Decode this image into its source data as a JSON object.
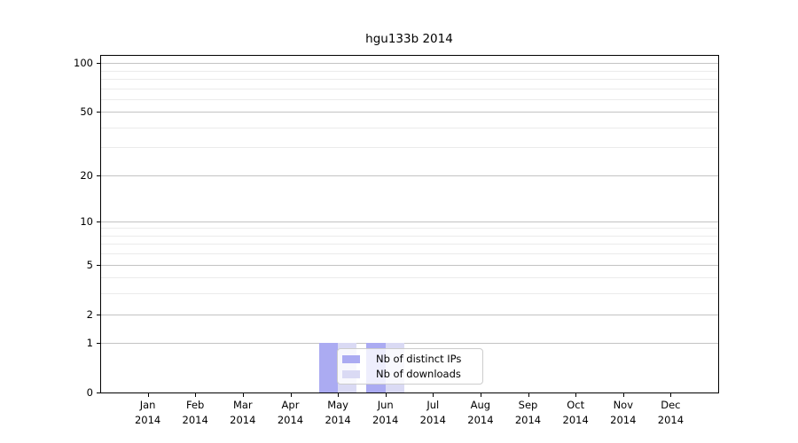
{
  "title": "hgu133b 2014",
  "chart_data": {
    "type": "bar",
    "title": "hgu133b 2014",
    "x_categories": [
      "Jan",
      "Feb",
      "Mar",
      "Apr",
      "May",
      "Jun",
      "Jul",
      "Aug",
      "Sep",
      "Oct",
      "Nov",
      "Dec"
    ],
    "x_year": "2014",
    "series": [
      {
        "name": "Nb of distinct IPs",
        "color": "#ababf2",
        "values": [
          0,
          0,
          0,
          0,
          1,
          1,
          0,
          0,
          0,
          0,
          0,
          0
        ]
      },
      {
        "name": "Nb of downloads",
        "color": "#dadaf4",
        "values": [
          0,
          0,
          0,
          0,
          1,
          1,
          0,
          0,
          0,
          0,
          0,
          0
        ]
      }
    ],
    "y_scale": "log1p",
    "y_major_ticks": [
      0,
      1,
      2,
      5,
      10,
      20,
      50,
      100
    ],
    "y_minor_gridlines": [
      3,
      4,
      6,
      7,
      8,
      9,
      30,
      40,
      60,
      70,
      80,
      90
    ],
    "ylim": [
      0,
      112
    ],
    "grid": "horizontal",
    "legend_position": "inside-lower-center"
  },
  "colors": {
    "bar_distinct_ips": "#ababf2",
    "bar_downloads": "#dadaf4",
    "grid_major": "#c3c3c3",
    "grid_minor": "#ebebeb",
    "axis": "#000000",
    "legend_border": "#cccccc",
    "background": "#ffffff"
  }
}
